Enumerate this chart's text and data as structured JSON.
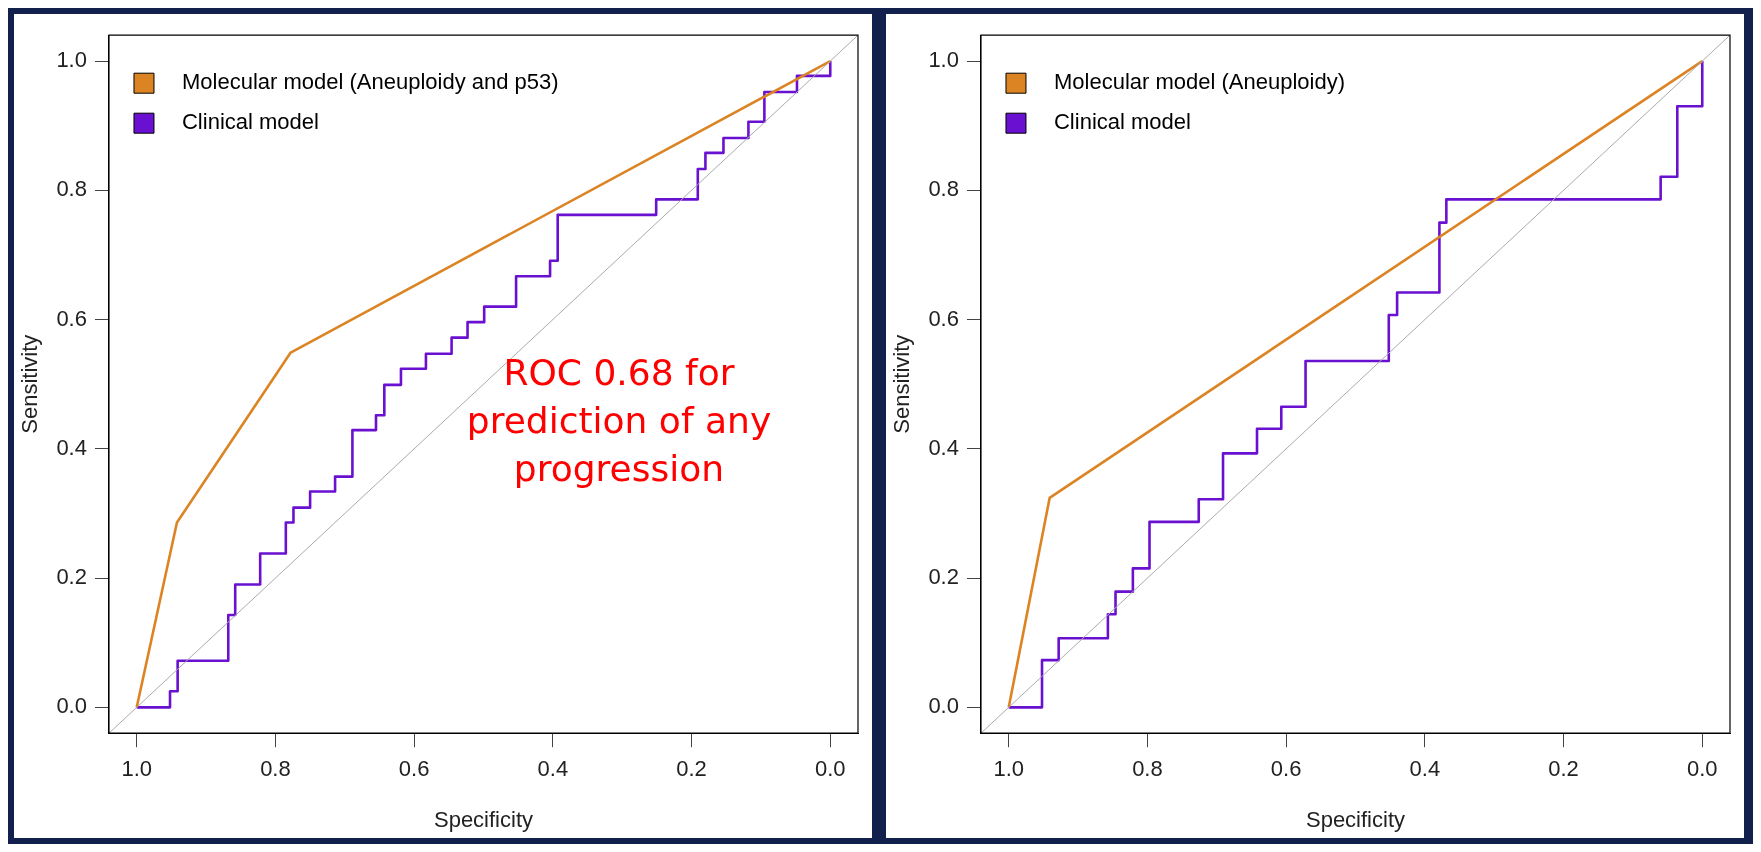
{
  "chart_data": [
    {
      "type": "line",
      "xlabel": "Specificity",
      "ylabel": "Sensitivity",
      "xlim": [
        1.04,
        -0.04
      ],
      "ylim": [
        -0.04,
        1.04
      ],
      "xticks": [
        {
          "value": 1,
          "label": "1.0"
        },
        {
          "value": 0.8,
          "label": "0.8"
        },
        {
          "value": 0.6,
          "label": "0.6"
        },
        {
          "value": 0.4,
          "label": "0.4"
        },
        {
          "value": 0.2,
          "label": "0.2"
        },
        {
          "value": 0,
          "label": "0.0"
        }
      ],
      "yticks": [
        {
          "value": 0,
          "label": "0.0"
        },
        {
          "value": 0.2,
          "label": "0.2"
        },
        {
          "value": 0.4,
          "label": "0.4"
        },
        {
          "value": 0.6,
          "label": "0.6"
        },
        {
          "value": 0.8,
          "label": "0.8"
        },
        {
          "value": 1,
          "label": "1.0"
        }
      ],
      "grid": false,
      "legend": "top left",
      "marker": "none",
      "line_style": "solid",
      "annotations": [
        "ROC 0.68 for prediction of any progression"
      ],
      "series": [
        {
          "color": "#aaaaaa",
          "x": [
            1.04,
            -0.04
          ],
          "values": [
            -0.04,
            1.04
          ]
        },
        {
          "name": "Molecular model (Aneuploidy and p53)",
          "color": "#dc8424",
          "x": [
            1,
            0.942,
            0.778,
            0
          ],
          "values": [
            0,
            0.286,
            0.549,
            1
          ]
        },
        {
          "type": "step",
          "name": "Clinical model",
          "color": "#6a10d0",
          "x": [
            1,
            0.952,
            0.941,
            0.868,
            0.858,
            0.822,
            0.785,
            0.774,
            0.75,
            0.714,
            0.689,
            0.655,
            0.643,
            0.619,
            0.583,
            0.546,
            0.523,
            0.499,
            0.453,
            0.404,
            0.393,
            0.251,
            0.191,
            0.18,
            0.154,
            0.118,
            0.095,
            0.048,
            0
          ],
          "values": [
            0,
            0.025,
            0.072,
            0.143,
            0.19,
            0.238,
            0.286,
            0.309,
            0.334,
            0.357,
            0.429,
            0.452,
            0.499,
            0.524,
            0.547,
            0.572,
            0.596,
            0.62,
            0.667,
            0.691,
            0.762,
            0.786,
            0.833,
            0.858,
            0.881,
            0.906,
            0.952,
            0.977,
            1
          ]
        }
      ]
    },
    {
      "type": "line",
      "xlabel": "Specificity",
      "ylabel": "Sensitivity",
      "xlim": [
        1.04,
        -0.04
      ],
      "ylim": [
        -0.04,
        1.04
      ],
      "xticks": [
        {
          "value": 1,
          "label": "1.0"
        },
        {
          "value": 0.8,
          "label": "0.8"
        },
        {
          "value": 0.6,
          "label": "0.6"
        },
        {
          "value": 0.4,
          "label": "0.4"
        },
        {
          "value": 0.2,
          "label": "0.2"
        },
        {
          "value": 0,
          "label": "0.0"
        }
      ],
      "yticks": [
        {
          "value": 0,
          "label": "0.0"
        },
        {
          "value": 0.2,
          "label": "0.2"
        },
        {
          "value": 0.4,
          "label": "0.4"
        },
        {
          "value": 0.6,
          "label": "0.6"
        },
        {
          "value": 0.8,
          "label": "0.8"
        },
        {
          "value": 1,
          "label": "1.0"
        }
      ],
      "grid": false,
      "legend": "top left",
      "marker": "none",
      "line_style": "solid",
      "series": [
        {
          "color": "#aaaaaa",
          "x": [
            1.04,
            -0.04
          ],
          "values": [
            -0.04,
            1.04
          ]
        },
        {
          "name": "Molecular model (Aneuploidy)",
          "color": "#dc8424",
          "x": [
            1,
            0.941,
            0
          ],
          "values": [
            0,
            0.324,
            1
          ]
        },
        {
          "type": "step",
          "name": "Clinical model",
          "color": "#6a10d0",
          "x": [
            1,
            0.952,
            0.928,
            0.857,
            0.846,
            0.821,
            0.797,
            0.726,
            0.691,
            0.642,
            0.607,
            0.572,
            0.452,
            0.44,
            0.379,
            0.369,
            0.06,
            0.036,
            0
          ],
          "values": [
            0,
            0.073,
            0.107,
            0.144,
            0.179,
            0.215,
            0.287,
            0.322,
            0.393,
            0.431,
            0.465,
            0.536,
            0.607,
            0.642,
            0.75,
            0.786,
            0.821,
            0.93,
            1
          ]
        }
      ]
    }
  ]
}
